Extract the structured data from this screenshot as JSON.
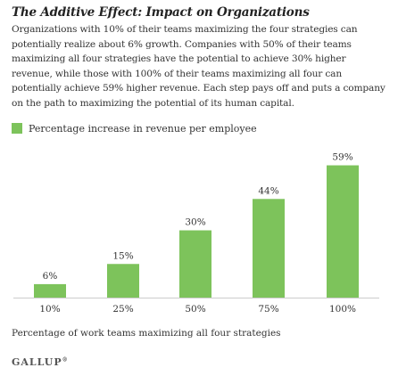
{
  "header": {
    "title": "The Additive Effect: Impact on Organizations",
    "description": "Organizations with 10% of their teams maximizing the four strategies can potentially realize about 6% growth. Companies with 50% of their teams maximizing all four strategies have the potential to achieve 30% higher revenue, while those with 100% of their teams maximizing all four can potentially achieve 59% higher revenue. Each step pays off and puts a company on the path to maximizing the potential of its human capital."
  },
  "chart_data": {
    "type": "bar",
    "categories": [
      "10%",
      "25%",
      "50%",
      "75%",
      "100%"
    ],
    "series": [
      {
        "name": "Percentage increase in revenue per employee",
        "values": [
          6,
          15,
          30,
          44,
          59
        ]
      }
    ],
    "data_labels": [
      "6%",
      "15%",
      "30%",
      "44%",
      "59%"
    ],
    "xlabel": "Percentage of work teams maximizing all four strategies",
    "ylabel": "",
    "ylim": [
      0,
      62
    ],
    "grid": false,
    "legend": "top-left",
    "bar_color": "#7dc35b",
    "axis_color": "#cccccc"
  },
  "footer": {
    "brand": "GALLUP",
    "brand_mark": "®"
  }
}
